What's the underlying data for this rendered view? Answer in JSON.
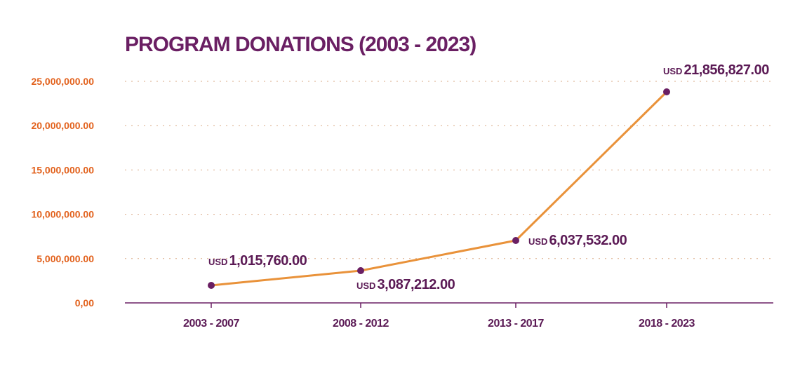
{
  "colors": {
    "title": "#6a1f63",
    "y_ticks": "#e2611c",
    "x_ticks": "#5b1a55",
    "line": "#e9923a",
    "points": "#6a1f63",
    "axis": "#6a1f63",
    "grid": "#d9a884"
  },
  "chart_data": {
    "type": "line",
    "title": "PROGRAM DONATIONS (2003 - 2023)",
    "xlabel": "",
    "ylabel": "",
    "categories": [
      "2003 - 2007",
      "2008 - 2012",
      "2013 - 2017",
      "2018 - 2023"
    ],
    "series": [
      {
        "values": [
          1015760.0,
          3087212.0,
          6037532.0,
          21856827.0
        ],
        "labels": [
          {
            "currency": "USD",
            "amount": "1,015,760.00"
          },
          {
            "currency": "USD",
            "amount": "3,087,212.00"
          },
          {
            "currency": "USD",
            "amount": "6,037,532.00"
          },
          {
            "currency": "USD",
            "amount": "21,856,827.00"
          }
        ]
      }
    ],
    "ylim": [
      0,
      25000000
    ],
    "yticks": [
      0,
      5000000,
      10000000,
      15000000,
      20000000,
      25000000
    ],
    "ytick_labels": [
      "0,00",
      "5,000,000.00",
      "10,000,000.00",
      "15,000,000.00",
      "20,000,000.00",
      "25,000,000.00"
    ],
    "grid": true,
    "legend": "none"
  }
}
